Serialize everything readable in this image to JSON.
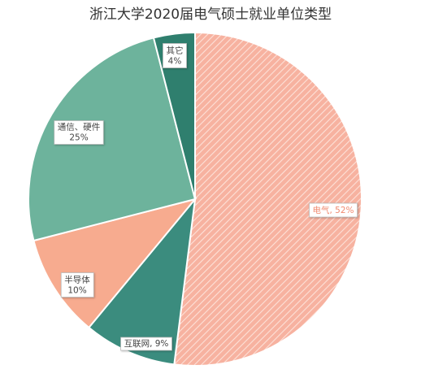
{
  "chart_data": {
    "type": "pie",
    "title": "浙江大学2020届电气硕士就业单位类型",
    "slices": [
      {
        "label": "电气",
        "value": 52,
        "percent_text": "52%",
        "color": "#f7b2a0",
        "pattern": "hatch",
        "label_color": "#f08a70",
        "label_style": "inline"
      },
      {
        "label": "互联网",
        "value": 9,
        "percent_text": "9%",
        "color": "#3b8c7e",
        "label_color": "#444444",
        "label_style": "inline"
      },
      {
        "label": "半导体",
        "value": 10,
        "percent_text": "10%",
        "color": "#f7ab8f",
        "label_color": "#444444",
        "label_style": "stacked"
      },
      {
        "label": "通信、硬件",
        "value": 25,
        "percent_text": "25%",
        "color": "#6db39c",
        "label_color": "#444444",
        "label_style": "stacked"
      },
      {
        "label": "其它",
        "value": 4,
        "percent_text": "4%",
        "color": "#2f7f6e",
        "label_color": "#444444",
        "label_style": "stacked"
      }
    ]
  }
}
